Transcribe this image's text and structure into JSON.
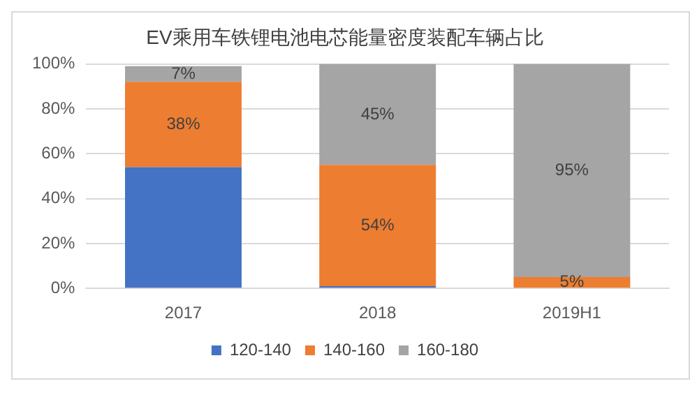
{
  "chart_data": {
    "type": "bar",
    "stacked": true,
    "title": "EV乘用车铁锂电池电芯能量密度装配车辆占比",
    "categories": [
      "2017",
      "2018",
      "2019H1"
    ],
    "ylim": [
      0,
      100
    ],
    "yticks": [
      {
        "value": 0,
        "label": "0%"
      },
      {
        "value": 20,
        "label": "20%"
      },
      {
        "value": 40,
        "label": "40%"
      },
      {
        "value": 60,
        "label": "60%"
      },
      {
        "value": 80,
        "label": "80%"
      },
      {
        "value": 100,
        "label": "100%"
      }
    ],
    "grid": "y",
    "legend": "bottom",
    "series": [
      {
        "name": "120-140",
        "color": "#4472c4",
        "values": [
          54,
          1,
          0
        ],
        "value_labels": [
          null,
          null,
          null
        ]
      },
      {
        "name": "140-160",
        "color": "#ed7d31",
        "values": [
          38,
          54,
          5
        ],
        "value_labels": [
          "38%",
          "54%",
          "5%"
        ]
      },
      {
        "name": "160-180",
        "color": "#a5a5a5",
        "values": [
          7,
          45,
          95
        ],
        "value_labels": [
          "7%",
          "45%",
          "95%"
        ]
      }
    ]
  }
}
